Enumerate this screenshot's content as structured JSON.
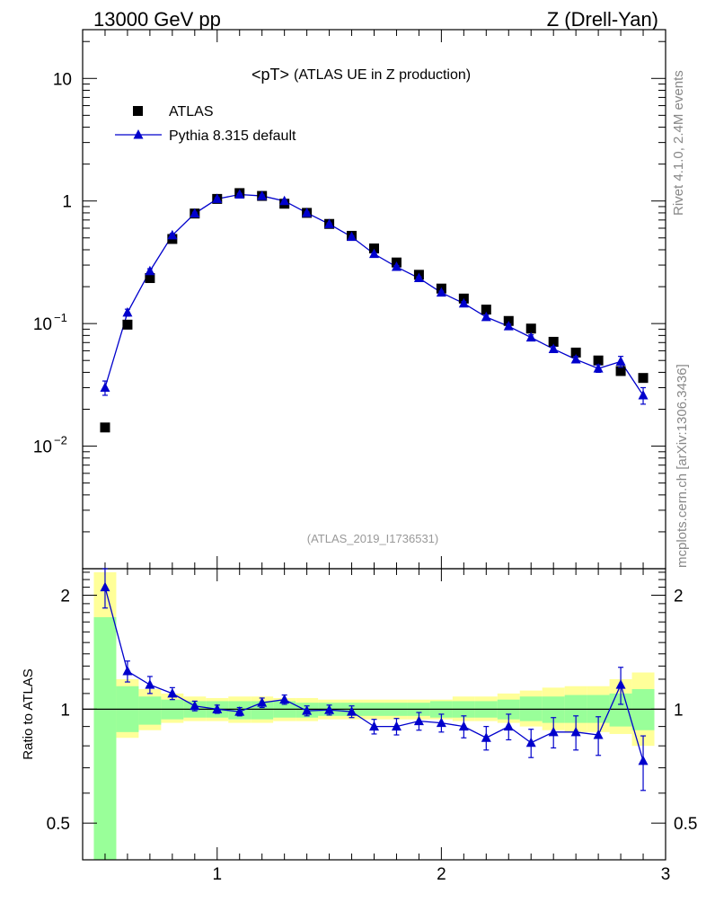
{
  "header": {
    "left": "13000 GeV pp",
    "right": "Z (Drell-Yan)"
  },
  "side_labels": {
    "rivet": "Rivet 4.1.0,  2.4M events",
    "site": "mcplots.cern.ch [arXiv:1306.3436]"
  },
  "chart_data": [
    {
      "panel": "main",
      "type": "scatter",
      "title": "<pT>",
      "subtitle": "(ATLAS UE in Z production)",
      "analysis_label": "(ATLAS_2019_I1736531)",
      "xlim": [
        0.4,
        3.0
      ],
      "ylim": [
        0.001,
        25
      ],
      "yscale": "log",
      "x_ticks": [
        1,
        2,
        3
      ],
      "y_ticks": [
        {
          "value": 10,
          "label": "10"
        },
        {
          "value": 1,
          "label": "1"
        },
        {
          "value": 0.1,
          "label": "10",
          "exp": "−1"
        },
        {
          "value": 0.01,
          "label": "10",
          "exp": "−2"
        }
      ],
      "legend": {
        "position": "top-left",
        "entries": [
          "ATLAS",
          "Pythia 8.315 default"
        ]
      },
      "x": [
        0.5,
        0.6,
        0.7,
        0.8,
        0.9,
        1.0,
        1.1,
        1.2,
        1.3,
        1.4,
        1.5,
        1.6,
        1.7,
        1.8,
        1.9,
        2.0,
        2.1,
        2.2,
        2.3,
        2.4,
        2.5,
        2.6,
        2.7,
        2.8,
        2.9
      ],
      "series": [
        {
          "name": "ATLAS",
          "marker": "square",
          "color": "#000000",
          "values": [
            0.0142,
            0.098,
            0.235,
            0.49,
            0.79,
            1.04,
            1.16,
            1.1,
            0.95,
            0.8,
            0.65,
            0.52,
            0.41,
            0.315,
            0.25,
            0.193,
            0.16,
            0.13,
            0.105,
            0.091,
            0.071,
            0.058,
            0.05,
            0.041,
            0.036
          ]
        },
        {
          "name": "Pythia 8.315 default",
          "marker": "triangle",
          "color": "#0000cc",
          "values": [
            0.03,
            0.123,
            0.268,
            0.525,
            0.79,
            1.04,
            1.13,
            1.1,
            1.0,
            0.8,
            0.648,
            0.51,
            0.37,
            0.29,
            0.235,
            0.179,
            0.146,
            0.113,
            0.095,
            0.077,
            0.062,
            0.051,
            0.043,
            0.049,
            0.026
          ],
          "errors": [
            0.004,
            0.008,
            0.012,
            0.018,
            0.02,
            0.022,
            0.022,
            0.02,
            0.018,
            0.014,
            0.012,
            0.01,
            0.008,
            0.007,
            0.006,
            0.005,
            0.005,
            0.004,
            0.004,
            0.004,
            0.003,
            0.003,
            0.003,
            0.005,
            0.004
          ]
        }
      ]
    },
    {
      "panel": "ratio",
      "type": "scatter",
      "ylabel": "Ratio to ATLAS",
      "xlim": [
        0.4,
        3.0
      ],
      "ylim": [
        0.4,
        2.35
      ],
      "yscale": "log",
      "x_ticks": [
        1,
        2,
        3
      ],
      "y_ticks": [
        {
          "value": 2,
          "label": "2"
        },
        {
          "value": 1,
          "label": "1"
        },
        {
          "value": 0.5,
          "label": "0.5"
        }
      ],
      "bands": {
        "bin_edges": [
          0.45,
          0.55,
          0.65,
          0.75,
          0.85,
          0.95,
          1.05,
          1.15,
          1.25,
          1.35,
          1.45,
          1.55,
          1.65,
          1.75,
          1.85,
          1.95,
          2.05,
          2.15,
          2.25,
          2.35,
          2.45,
          2.55,
          2.65,
          2.75,
          2.85,
          2.95
        ],
        "yellow_color": "#ffff99",
        "green_color": "#99ff99",
        "yellow_lo": [
          0.4,
          0.84,
          0.88,
          0.92,
          0.93,
          0.93,
          0.92,
          0.92,
          0.93,
          0.93,
          0.94,
          0.94,
          0.94,
          0.94,
          0.94,
          0.94,
          0.93,
          0.93,
          0.92,
          0.9,
          0.88,
          0.87,
          0.87,
          0.86,
          0.8
        ],
        "yellow_hi": [
          2.3,
          1.2,
          1.13,
          1.1,
          1.08,
          1.07,
          1.08,
          1.08,
          1.07,
          1.07,
          1.06,
          1.06,
          1.06,
          1.06,
          1.06,
          1.06,
          1.08,
          1.08,
          1.1,
          1.12,
          1.14,
          1.15,
          1.15,
          1.2,
          1.25
        ],
        "green_lo": [
          0.4,
          0.87,
          0.91,
          0.94,
          0.95,
          0.95,
          0.94,
          0.94,
          0.95,
          0.95,
          0.96,
          0.96,
          0.96,
          0.96,
          0.96,
          0.95,
          0.95,
          0.95,
          0.94,
          0.93,
          0.92,
          0.92,
          0.92,
          0.9,
          0.88
        ],
        "green_hi": [
          1.75,
          1.15,
          1.08,
          1.06,
          1.05,
          1.05,
          1.05,
          1.05,
          1.05,
          1.04,
          1.04,
          1.04,
          1.04,
          1.04,
          1.04,
          1.05,
          1.05,
          1.05,
          1.06,
          1.08,
          1.08,
          1.09,
          1.09,
          1.1,
          1.13
        ]
      },
      "x": [
        0.5,
        0.6,
        0.7,
        0.8,
        0.9,
        1.0,
        1.1,
        1.2,
        1.3,
        1.4,
        1.5,
        1.6,
        1.7,
        1.8,
        1.9,
        2.0,
        2.1,
        2.2,
        2.3,
        2.4,
        2.5,
        2.6,
        2.7,
        2.8,
        2.9
      ],
      "series": [
        {
          "name": "Pythia 8.315 default",
          "color": "#0000cc",
          "values": [
            2.1,
            1.26,
            1.16,
            1.1,
            1.02,
            1.0,
            0.985,
            1.04,
            1.06,
            0.99,
            0.995,
            0.985,
            0.9,
            0.9,
            0.93,
            0.92,
            0.9,
            0.84,
            0.9,
            0.815,
            0.87,
            0.87,
            0.855,
            1.16,
            0.73
          ],
          "errors": [
            0.25,
            0.08,
            0.06,
            0.04,
            0.03,
            0.025,
            0.025,
            0.03,
            0.03,
            0.03,
            0.03,
            0.035,
            0.04,
            0.045,
            0.05,
            0.05,
            0.06,
            0.06,
            0.07,
            0.07,
            0.08,
            0.09,
            0.1,
            0.13,
            0.12
          ]
        }
      ]
    }
  ]
}
